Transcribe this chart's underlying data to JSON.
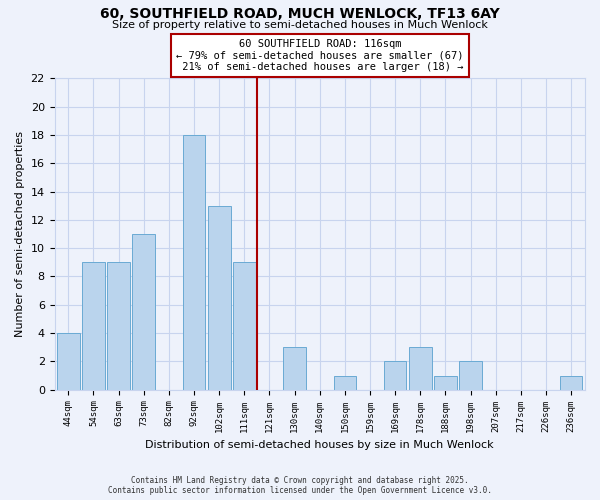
{
  "title1": "60, SOUTHFIELD ROAD, MUCH WENLOCK, TF13 6AY",
  "title2": "Size of property relative to semi-detached houses in Much Wenlock",
  "xlabel": "Distribution of semi-detached houses by size in Much Wenlock",
  "ylabel": "Number of semi-detached properties",
  "bar_labels": [
    "44sqm",
    "54sqm",
    "63sqm",
    "73sqm",
    "82sqm",
    "92sqm",
    "102sqm",
    "111sqm",
    "121sqm",
    "130sqm",
    "140sqm",
    "150sqm",
    "159sqm",
    "169sqm",
    "178sqm",
    "188sqm",
    "198sqm",
    "207sqm",
    "217sqm",
    "226sqm",
    "236sqm"
  ],
  "bar_values": [
    4,
    9,
    9,
    11,
    0,
    18,
    13,
    9,
    0,
    3,
    0,
    1,
    0,
    2,
    3,
    1,
    2,
    0,
    0,
    0,
    1
  ],
  "bar_color": "#bad4ed",
  "bar_edge_color": "#6aaad4",
  "annotation_title": "60 SOUTHFIELD ROAD: 116sqm",
  "annotation_line1": "← 79% of semi-detached houses are smaller (67)",
  "annotation_line2": " 21% of semi-detached houses are larger (18) →",
  "vline_index": 8.0,
  "vline_color": "#aa0000",
  "ylim": [
    0,
    22
  ],
  "yticks": [
    0,
    2,
    4,
    6,
    8,
    10,
    12,
    14,
    16,
    18,
    20,
    22
  ],
  "bg_color": "#eef2fb",
  "grid_color": "#c8d4ee",
  "footer1": "Contains HM Land Registry data © Crown copyright and database right 2025.",
  "footer2": "Contains public sector information licensed under the Open Government Licence v3.0."
}
